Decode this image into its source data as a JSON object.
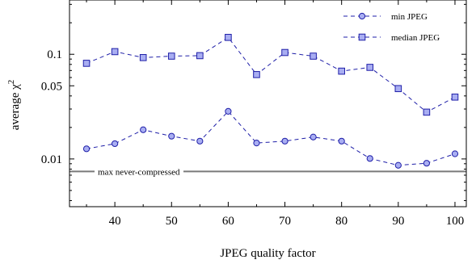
{
  "chart_data": {
    "type": "line",
    "title": "",
    "xlabel": "JPEG quality factor",
    "ylabel": "average χ",
    "ylabel_superscript": "2",
    "x": [
      35,
      40,
      45,
      50,
      55,
      60,
      65,
      70,
      75,
      80,
      85,
      90,
      95,
      100
    ],
    "xlim": [
      32,
      102
    ],
    "ylim": [
      0.0035,
      0.33
    ],
    "yscale": "log",
    "x_ticks": [
      40,
      50,
      60,
      70,
      80,
      90,
      100
    ],
    "x_tick_labels": [
      "40",
      "50",
      "60",
      "70",
      "80",
      "90",
      "100"
    ],
    "y_ticks": [
      0.01,
      0.05,
      0.1
    ],
    "y_tick_labels": [
      "0.01",
      "0.05",
      "0.1"
    ],
    "grid": false,
    "legend_position": "top-right",
    "series": [
      {
        "name": "min JPEG",
        "marker": "circle",
        "line_style": "dashed",
        "color": "#1f1fa8",
        "fill": "#a9aef2",
        "values": [
          0.0125,
          0.014,
          0.019,
          0.0165,
          0.0148,
          0.0285,
          0.0142,
          0.0148,
          0.0162,
          0.0148,
          0.0101,
          0.0087,
          0.0091,
          0.0112
        ]
      },
      {
        "name": "median JPEG",
        "marker": "square",
        "line_style": "dashed",
        "color": "#1f1fa8",
        "fill": "#a9aef2",
        "values": [
          0.082,
          0.106,
          0.093,
          0.096,
          0.097,
          0.145,
          0.064,
          0.104,
          0.096,
          0.069,
          0.075,
          0.047,
          0.028,
          0.039
        ]
      }
    ],
    "reference_lines": [
      {
        "label": "max never-compressed",
        "value": 0.0076,
        "color": "#7a7a7a"
      }
    ]
  }
}
